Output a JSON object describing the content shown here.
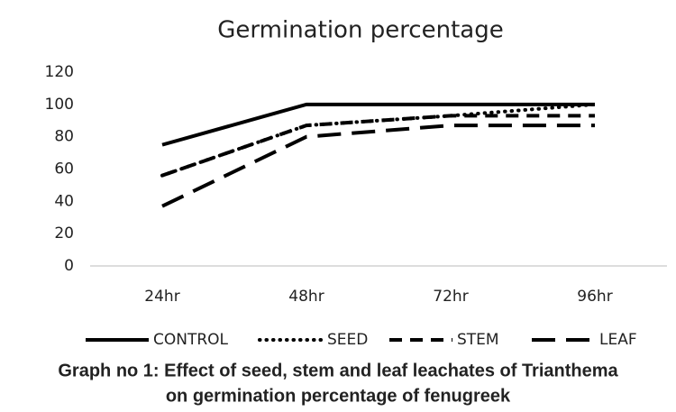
{
  "chart_data": {
    "type": "line",
    "title": "Germination percentage",
    "categories": [
      "24hr",
      "48hr",
      "72hr",
      "96hr"
    ],
    "series": [
      {
        "name": "CONTROL",
        "color": "#000000",
        "style": "solid",
        "values": [
          75,
          100,
          100,
          100
        ]
      },
      {
        "name": "SEED",
        "color": "#000000",
        "style": "dotted",
        "values": [
          56,
          87,
          93,
          100
        ]
      },
      {
        "name": "STEM",
        "color": "#000000",
        "style": "dashed",
        "values": [
          56,
          87,
          93,
          93
        ]
      },
      {
        "name": "LEAF",
        "color": "#000000",
        "style": "long-dashed",
        "values": [
          37,
          80,
          87,
          87
        ]
      }
    ],
    "ylim": [
      0,
      120
    ],
    "yticks": [
      0,
      20,
      40,
      60,
      80,
      100,
      120
    ],
    "grid": false,
    "legend": "bottom",
    "caption": [
      "Graph no 1: Effect of seed, stem and leaf leachates of Trianthema",
      "on germination percentage of fenugreek"
    ]
  }
}
